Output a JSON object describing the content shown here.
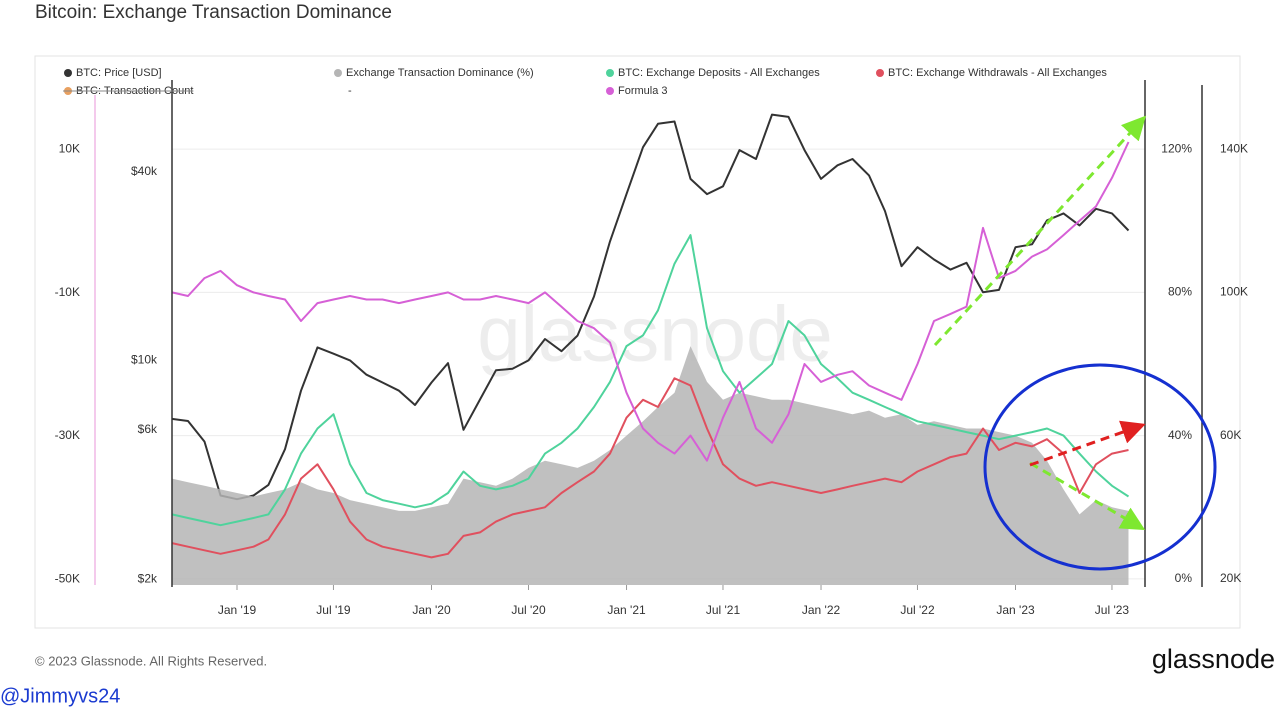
{
  "chart_data": {
    "type": "line",
    "title": "Bitcoin: Exchange Transaction Dominance",
    "x": [
      "2018-09",
      "2018-10",
      "2018-11",
      "2018-12",
      "2019-01",
      "2019-02",
      "2019-03",
      "2019-04",
      "2019-05",
      "2019-06",
      "2019-07",
      "2019-08",
      "2019-09",
      "2019-10",
      "2019-11",
      "2019-12",
      "2020-01",
      "2020-02",
      "2020-03",
      "2020-04",
      "2020-05",
      "2020-06",
      "2020-07",
      "2020-08",
      "2020-09",
      "2020-10",
      "2020-11",
      "2020-12",
      "2021-01",
      "2021-02",
      "2021-03",
      "2021-04",
      "2021-05",
      "2021-06",
      "2021-07",
      "2021-08",
      "2021-09",
      "2021-10",
      "2021-11",
      "2021-12",
      "2022-01",
      "2022-02",
      "2022-03",
      "2022-04",
      "2022-05",
      "2022-06",
      "2022-07",
      "2022-08",
      "2022-09",
      "2022-10",
      "2022-11",
      "2022-12",
      "2023-01",
      "2023-02",
      "2023-03",
      "2023-04",
      "2023-05",
      "2023-06",
      "2023-07",
      "2023-08"
    ],
    "xlim": [
      "2018-09",
      "2023-09"
    ],
    "xticks": [
      {
        "value": "2019-01",
        "label": "Jan '19"
      },
      {
        "value": "2019-07",
        "label": "Jul '19"
      },
      {
        "value": "2020-01",
        "label": "Jan '20"
      },
      {
        "value": "2020-07",
        "label": "Jul '20"
      },
      {
        "value": "2021-01",
        "label": "Jan '21"
      },
      {
        "value": "2021-07",
        "label": "Jul '21"
      },
      {
        "value": "2022-01",
        "label": "Jan '22"
      },
      {
        "value": "2022-07",
        "label": "Jul '22"
      },
      {
        "value": "2023-01",
        "label": "Jan '23"
      },
      {
        "value": "2023-07",
        "label": "Jul '23"
      }
    ],
    "ylim": [
      -50800,
      19700
    ],
    "yticks": [
      {
        "value": 10000,
        "label": "10K"
      },
      {
        "value": -10000,
        "label": "-10K"
      },
      {
        "value": -30000,
        "label": "-30K"
      },
      {
        "value": -50000,
        "label": "-50K"
      }
    ],
    "y2lim": [
      1915,
      78700
    ],
    "y2scale": "log",
    "y2ticks": [
      {
        "value": 40000,
        "label": "$40k"
      },
      {
        "value": 10000,
        "label": "$10k"
      },
      {
        "value": 6000,
        "label": "$6k"
      },
      {
        "value": 2000,
        "label": "$2k"
      }
    ],
    "y3lim": [
      -1.7,
      139.3
    ],
    "y3ticks": [
      {
        "value": 120,
        "label": "120%"
      },
      {
        "value": 80,
        "label": "80%"
      },
      {
        "value": 40,
        "label": "40%"
      },
      {
        "value": 0,
        "label": "0%"
      }
    ],
    "y4lim": [
      18300,
      159300
    ],
    "y4ticks": [
      {
        "value": 140000,
        "label": "140K"
      },
      {
        "value": 100000,
        "label": "100K"
      },
      {
        "value": 60000,
        "label": "60K"
      },
      {
        "value": 20000,
        "label": "20K"
      }
    ],
    "grid": true,
    "legend_note": "-",
    "series": [
      {
        "name": "BTC: Price [USD]",
        "color": "#333333",
        "axis": "y2",
        "style": "line",
        "values": [
          6500,
          6400,
          5500,
          3700,
          3600,
          3700,
          4000,
          5200,
          8000,
          11000,
          10500,
          10000,
          9000,
          8500,
          8000,
          7200,
          8500,
          9800,
          6000,
          7500,
          9300,
          9400,
          10000,
          11700,
          10700,
          12000,
          16000,
          24000,
          34000,
          48000,
          57000,
          58000,
          38000,
          34000,
          36000,
          47000,
          44000,
          61000,
          60000,
          47000,
          38000,
          42000,
          44000,
          39000,
          30000,
          20000,
          23000,
          21000,
          19500,
          20500,
          16500,
          16800,
          23000,
          23500,
          28000,
          29500,
          27000,
          30500,
          29500,
          26000
        ]
      },
      {
        "name": "Exchange Transaction Dominance (%)",
        "color": "#b5b5b5",
        "axis": "y3",
        "style": "area",
        "values": [
          28,
          27,
          26,
          25,
          24,
          23,
          24,
          25,
          27,
          25,
          24,
          22,
          21,
          20,
          19,
          19,
          20,
          21,
          28,
          27,
          26,
          28,
          31,
          33,
          32,
          31,
          33,
          36,
          40,
          44,
          48,
          52,
          65,
          55,
          50,
          52,
          51,
          50,
          50,
          49,
          48,
          47,
          46,
          47,
          45,
          46,
          43,
          44,
          43,
          42,
          42,
          41,
          40,
          38,
          33,
          25,
          18,
          22,
          20,
          19
        ]
      },
      {
        "name": "BTC: Exchange Deposits - All Exchanges",
        "color": "#4fd39c",
        "axis": "y4",
        "style": "line",
        "values": [
          38000,
          37000,
          36000,
          35000,
          36000,
          37000,
          38000,
          45000,
          55000,
          62000,
          66000,
          52000,
          44000,
          42000,
          41000,
          40000,
          41000,
          44000,
          50000,
          46000,
          45000,
          46000,
          48000,
          55000,
          58000,
          62000,
          68000,
          75000,
          85000,
          88000,
          95000,
          108000,
          116000,
          90000,
          78000,
          72000,
          76000,
          80000,
          92000,
          88000,
          80000,
          76000,
          72000,
          70000,
          68000,
          66000,
          64000,
          63000,
          62000,
          61000,
          60000,
          59000,
          60000,
          61000,
          62000,
          60000,
          55000,
          50000,
          46000,
          43000
        ]
      },
      {
        "name": "BTC: Exchange Withdrawals - All Exchanges",
        "color": "#e0505e",
        "axis": "y4",
        "style": "line",
        "values": [
          30000,
          29000,
          28000,
          27000,
          28000,
          29000,
          31000,
          38000,
          48000,
          52000,
          45000,
          36000,
          31000,
          29000,
          28000,
          27000,
          26000,
          27000,
          32000,
          33000,
          36000,
          38000,
          39000,
          40000,
          44000,
          47000,
          50000,
          55000,
          65000,
          70000,
          68000,
          76000,
          74000,
          62000,
          52000,
          48000,
          46000,
          47000,
          46000,
          45000,
          44000,
          45000,
          46000,
          47000,
          48000,
          47000,
          50000,
          52000,
          54000,
          55000,
          62000,
          56000,
          58000,
          57000,
          59000,
          55000,
          44000,
          52000,
          55000,
          56000
        ]
      },
      {
        "name": "BTC: Transaction Count",
        "color": "#e8a060",
        "axis": "y",
        "visible": false
      },
      {
        "name": "Formula 3",
        "color": "#d660d6",
        "axis": "y3",
        "style": "line",
        "values": [
          80,
          79,
          84,
          86,
          82,
          80,
          79,
          78,
          72,
          77,
          78,
          79,
          78,
          78,
          77,
          78,
          79,
          80,
          78,
          78,
          79,
          78,
          77,
          80,
          76,
          72,
          70,
          66,
          52,
          42,
          38,
          35,
          40,
          33,
          45,
          55,
          42,
          38,
          46,
          60,
          55,
          57,
          58,
          54,
          52,
          50,
          60,
          72,
          74,
          76,
          98,
          84,
          86,
          90,
          92,
          96,
          100,
          104,
          112,
          122
        ]
      }
    ]
  },
  "copyright": "© 2023 Glassnode. All Rights Reserved.",
  "brand": "glassnode",
  "watermark": "glassnode",
  "credit": "@Jimmyvs24"
}
